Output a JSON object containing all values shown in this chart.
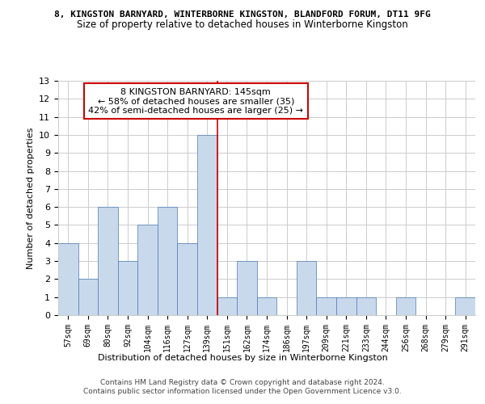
{
  "title_main": "8, KINGSTON BARNYARD, WINTERBORNE KINGSTON, BLANDFORD FORUM, DT11 9FG",
  "title_sub": "Size of property relative to detached houses in Winterborne Kingston",
  "xlabel": "Distribution of detached houses by size in Winterborne Kingston",
  "ylabel": "Number of detached properties",
  "categories": [
    "57sqm",
    "69sqm",
    "80sqm",
    "92sqm",
    "104sqm",
    "116sqm",
    "127sqm",
    "139sqm",
    "151sqm",
    "162sqm",
    "174sqm",
    "186sqm",
    "197sqm",
    "209sqm",
    "221sqm",
    "233sqm",
    "244sqm",
    "256sqm",
    "268sqm",
    "279sqm",
    "291sqm"
  ],
  "values": [
    4,
    2,
    6,
    3,
    5,
    6,
    4,
    10,
    1,
    3,
    1,
    0,
    3,
    1,
    1,
    1,
    0,
    1,
    0,
    0,
    1
  ],
  "bar_color": "#c9d9ec",
  "bar_edge_color": "#4a7ab5",
  "red_line_index": 7,
  "annotation_title": "8 KINGSTON BARNYARD: 145sqm",
  "annotation_line1": "← 58% of detached houses are smaller (35)",
  "annotation_line2": "42% of semi-detached houses are larger (25) →",
  "annotation_box_color": "#ffffff",
  "annotation_box_edge": "#cc0000",
  "red_line_color": "#cc0000",
  "ylim": [
    0,
    13
  ],
  "yticks": [
    0,
    1,
    2,
    3,
    4,
    5,
    6,
    7,
    8,
    9,
    10,
    11,
    12,
    13
  ],
  "footer1": "Contains HM Land Registry data © Crown copyright and database right 2024.",
  "footer2": "Contains public sector information licensed under the Open Government Licence v3.0.",
  "bg_color": "#ffffff",
  "grid_color": "#cccccc"
}
